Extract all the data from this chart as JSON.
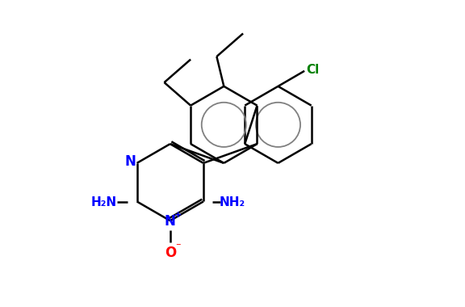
{
  "bg_color": "#ffffff",
  "bond_color": "#000000",
  "aromatic_color": "#808080",
  "N_color": "#0000ff",
  "Cl_color": "#008000",
  "O_color": "#ff0000",
  "lw": 1.8,
  "figsize": [
    5.76,
    3.8
  ],
  "dpi": 100,
  "xlim": [
    0,
    9.6
  ],
  "ylim": [
    0,
    6.3
  ]
}
